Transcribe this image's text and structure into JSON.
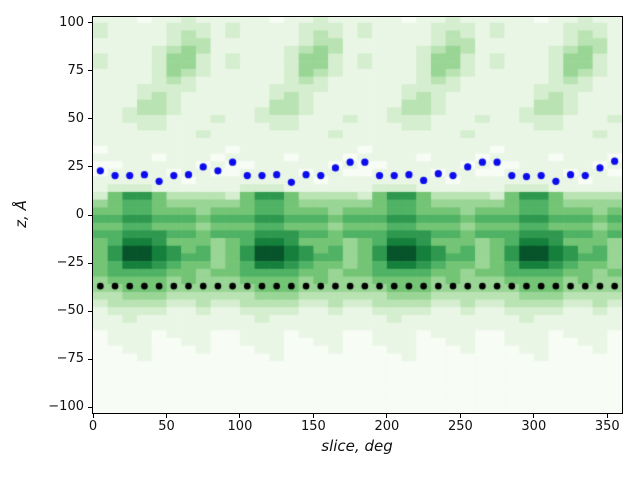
{
  "chart_data": {
    "type": "heatmap",
    "title": "",
    "xlabel": "slice, deg",
    "ylabel": "z, Å",
    "xlim": [
      0,
      360
    ],
    "ylim": [
      -103,
      103
    ],
    "xticks": [
      0,
      50,
      100,
      150,
      200,
      250,
      300,
      350
    ],
    "yticks": [
      -100,
      -75,
      -50,
      -25,
      0,
      25,
      50,
      75,
      100
    ],
    "grid": false,
    "legend": "none",
    "heatmap": {
      "description": "green density map (Greens colormap), periodic every 90 deg, 36 columns of 10 deg, rows of 4 A from z=+104 down to z=-104; digit 0=lightest .. 9=darkest; each 9-char row pattern tiles 4 times across",
      "x_start": 0,
      "x_step": 10,
      "cols": 36,
      "z_top": 104,
      "z_step": 4,
      "palette": [
        "#f7fcf5",
        "#e9f6e5",
        "#d5eecf",
        "#b9e3b3",
        "#99d595",
        "#74c476",
        "#4fb264",
        "#2f984f",
        "#15803c",
        "#07542b"
      ],
      "rows": [
        "111011211",
        "211112221",
        "211112321",
        "111112331",
        "111123431",
        "211124421",
        "211124421",
        "111124321",
        "111123211",
        "111222211",
        "111232111",
        "111332111",
        "112332111",
        "112221112",
        "111221111",
        "111111121",
        "111111111",
        "011111111",
        "111101110",
        "001111101",
        "011110110",
        "111111011",
        "122211111",
        "257753333",
        "456654444",
        "556655545",
        "667766656",
        "556655545",
        "667776656",
        "568875554",
        "579987564",
        "579987664",
        "568876554",
        "566665545",
        "455554544",
        "445554444",
        "334443333",
        "233332232",
        "122221121",
        "112111111",
        "111111111",
        "011101110",
        "011100110",
        "001100010",
        "000100000",
        "000000000",
        "000000000",
        "000000000",
        "000000000",
        "000000000",
        "000000000",
        "000000000"
      ]
    },
    "series": [
      {
        "name": "upper-boundary-dots",
        "marker": "dot",
        "color": "#0b0bee",
        "radius": 3.6,
        "x": [
          5,
          15,
          25,
          35,
          45,
          55,
          65,
          75,
          85,
          95,
          105,
          115,
          125,
          135,
          145,
          155,
          165,
          175,
          185,
          195,
          205,
          215,
          225,
          235,
          245,
          255,
          265,
          275,
          285,
          295,
          305,
          315,
          325,
          335,
          345,
          355
        ],
        "y": [
          23,
          20.5,
          20.5,
          21,
          17.5,
          20.5,
          21,
          25,
          23,
          27.5,
          20.5,
          20.5,
          21,
          17,
          21,
          20.5,
          24.5,
          27.5,
          27.5,
          20.5,
          20.5,
          21,
          18,
          21.5,
          20.5,
          25,
          27.5,
          27.5,
          20.5,
          20,
          20.5,
          17.5,
          21,
          20.5,
          24.5,
          28
        ]
      },
      {
        "name": "lower-boundary-dots",
        "marker": "dot",
        "color": "#000000",
        "radius": 3.3,
        "x": [
          5,
          15,
          25,
          35,
          45,
          55,
          65,
          75,
          85,
          95,
          105,
          115,
          125,
          135,
          145,
          155,
          165,
          175,
          185,
          195,
          205,
          215,
          225,
          235,
          245,
          255,
          265,
          275,
          285,
          295,
          305,
          315,
          325,
          335,
          345,
          355
        ],
        "y": [
          -37,
          -37,
          -37,
          -37,
          -37,
          -37,
          -37,
          -37,
          -37,
          -37,
          -37,
          -37,
          -37,
          -37,
          -37,
          -37,
          -37,
          -37,
          -37,
          -37,
          -37,
          -37,
          -37,
          -37,
          -37,
          -37,
          -37,
          -37,
          -37,
          -37,
          -37,
          -37,
          -37,
          -37,
          -37,
          -37
        ]
      }
    ]
  },
  "colors": {
    "axis": "#000000",
    "tick_label": "#111111",
    "figure_background": "#ffffff"
  }
}
